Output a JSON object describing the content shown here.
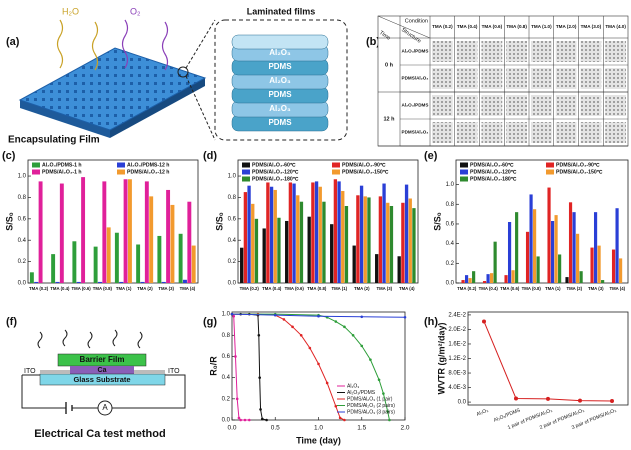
{
  "panel_labels": [
    "(a)",
    "(b)",
    "(c)",
    "(d)",
    "(e)",
    "(f)",
    "(g)",
    "(h)"
  ],
  "diagram_a": {
    "h2o": "H₂O",
    "o2": "O₂",
    "film": "Encapsulating Film",
    "inset_title": "Laminated films",
    "layers": [
      "Al₂O₃",
      "PDMS",
      "Al₂O₃",
      "PDMS",
      "Al₂O₃",
      "PDMS"
    ]
  },
  "table_b": {
    "corner": {
      "condition": "Condition",
      "structure": "Structure",
      "time": "Time"
    },
    "columns": [
      "TMA (0.2)",
      "TMA (0.4)",
      "TMA (0.6)",
      "TMA (0.8)",
      "TMA (1.0)",
      "TMA (2.0)",
      "TMA (3.0)",
      "TMA (4.0)"
    ],
    "groups": [
      {
        "time": "0 h",
        "rows": [
          "Al₂O₃/PDMS",
          "PDMS/Al₂O₃"
        ]
      },
      {
        "time": "12 h",
        "rows": [
          "Al₂O₃/PDMS",
          "PDMS/Al₂O₃"
        ]
      }
    ]
  },
  "diagram_f": {
    "barrier": "Barrier Film",
    "ca": "Ca",
    "ito_left": "ITO",
    "ito_right": "ITO",
    "substrate": "Glass Substrate",
    "meter": "A",
    "caption": "Electrical Ca test method"
  },
  "chart_data": [
    {
      "type": "bar",
      "y_label": "S/S₀",
      "categories": [
        "TMA (0.2)",
        "TMA (0.4)",
        "TMA (0.6)",
        "TMA (0.8)",
        "TMA (1)",
        "TMA (2)",
        "TMA (3)",
        "TMA (4)"
      ],
      "ylim": [
        0,
        1.15
      ],
      "yticks": [
        {
          "value": 0,
          "label": "0.0"
        },
        0.2,
        0.4,
        0.6,
        0.8,
        {
          "value": 1,
          "label": "1.0"
        }
      ],
      "series": [
        {
          "name": "Al₂O₃/PDMS-1 h",
          "color": "#2e9e3a",
          "values": [
            0.1,
            0.27,
            0.39,
            0.34,
            0.47,
            0.36,
            0.44,
            0.46
          ]
        },
        {
          "name": "Al₂O₃/PDMS-12 h",
          "color": "#2a3fd6",
          "values": [
            0.01,
            0.01,
            0.01,
            0.01,
            0.01,
            0.01,
            0.01,
            0.03
          ]
        },
        {
          "name": "PDMS/Al₂O₃-1 h",
          "color": "#e0209a",
          "values": [
            0.95,
            0.93,
            0.99,
            0.95,
            0.97,
            0.95,
            0.87,
            0.76
          ]
        },
        {
          "name": "PDMS/Al₂O₃-12 h",
          "color": "#f29a2e",
          "values": [
            0,
            0,
            0,
            0.52,
            0.97,
            0.81,
            0.73,
            0.35
          ]
        }
      ]
    },
    {
      "type": "bar",
      "y_label": "S/S₀",
      "categories": [
        "TMA (0.2)",
        "TMA (0.4)",
        "TMA (0.6)",
        "TMA (0.8)",
        "TMA (1)",
        "TMA (2)",
        "TMA (3)",
        "TMA (4)"
      ],
      "ylim": [
        0,
        1.15
      ],
      "yticks": [
        {
          "value": 0,
          "label": "0.0"
        },
        0.2,
        0.4,
        0.6,
        0.8,
        {
          "value": 1,
          "label": "1.0"
        }
      ],
      "series": [
        {
          "name": "PDMS/Al₂O₃-60℃",
          "color": "#111111",
          "values": [
            0.33,
            0.51,
            0.58,
            0.62,
            0.55,
            0.35,
            0.27,
            0.25
          ]
        },
        {
          "name": "PDMS/Al₂O₃-90℃",
          "color": "#e02424",
          "values": [
            0.85,
            0.94,
            0.94,
            0.94,
            0.97,
            0.82,
            0.81,
            0.75
          ]
        },
        {
          "name": "PDMS/Al₂O₃-120℃",
          "color": "#2a3fd6",
          "values": [
            0.91,
            0.9,
            0.93,
            0.95,
            0.95,
            0.91,
            0.93,
            0.92
          ]
        },
        {
          "name": "PDMS/Al₂O₃-150℃",
          "color": "#f29a2e",
          "values": [
            0.74,
            0.87,
            0.82,
            0.9,
            0.86,
            0.81,
            0.75,
            0.79
          ]
        },
        {
          "name": "PDMS/Al₂O₃-180℃",
          "color": "#2e8a2e",
          "values": [
            0.6,
            0.61,
            0.76,
            0.76,
            0.72,
            0.8,
            0.72,
            0.7
          ]
        }
      ]
    },
    {
      "type": "bar",
      "y_label": "S/S₀",
      "categories": [
        "TMA (0.2)",
        "TMA (0.4)",
        "TMA (0.6)",
        "TMA (0.8)",
        "TMA (1)",
        "TMA (2)",
        "TMA (3)",
        "TMA (4)"
      ],
      "ylim": [
        0,
        1.25
      ],
      "yticks": [
        {
          "value": 0,
          "label": "0.0"
        },
        0.2,
        0.4,
        0.6,
        0.8,
        {
          "value": 1,
          "label": "1.0"
        }
      ],
      "series": [
        {
          "name": "PDMS/Al₂O₃-60℃",
          "color": "#111111",
          "values": [
            0,
            0,
            0,
            0,
            0,
            0.06,
            0,
            0
          ]
        },
        {
          "name": "PDMS/Al₂O₃-90℃",
          "color": "#e02424",
          "values": [
            0.03,
            0.02,
            0.08,
            0.52,
            0.97,
            0.82,
            0.36,
            0.34
          ]
        },
        {
          "name": "PDMS/Al₂O₃-120℃",
          "color": "#2a3fd6",
          "values": [
            0.08,
            0.09,
            0.62,
            0.9,
            0.63,
            0.72,
            0.72,
            0.76
          ]
        },
        {
          "name": "PDMS/Al₂O₃-150℃",
          "color": "#f29a2e",
          "values": [
            0.05,
            0.1,
            0.13,
            0.75,
            0.69,
            0.5,
            0.38,
            0.25
          ]
        },
        {
          "name": "PDMS/Al₂O₃-180℃",
          "color": "#2e8a2e",
          "values": [
            0.12,
            0.42,
            0.72,
            0.27,
            0.29,
            0.12,
            0.03,
            0
          ]
        }
      ]
    },
    {
      "type": "line",
      "x_label": "Time (day)",
      "y_label": "R₀/R",
      "xlim": [
        0,
        2.0
      ],
      "ylim": [
        0,
        1.02
      ],
      "xticks": [
        {
          "value": 0,
          "label": "0.0"
        },
        0.5,
        {
          "value": 1,
          "label": "1.0"
        },
        1.5,
        {
          "value": 2,
          "label": "2.0"
        }
      ],
      "yticks": [
        {
          "value": 0,
          "label": "0.0"
        },
        0.2,
        0.4,
        0.6,
        0.8,
        {
          "value": 1,
          "label": "1.0"
        }
      ],
      "series": [
        {
          "name": "Al₂O₃",
          "color": "#e0209a",
          "x": [
            0,
            0.02,
            0.04,
            0.06,
            0.08,
            0.1,
            0.15,
            0.2
          ],
          "values": [
            1,
            0.98,
            0.6,
            0.2,
            0.02,
            0,
            0,
            0
          ]
        },
        {
          "name": "Al₂O₃/PDMS",
          "color": "#111111",
          "x": [
            0,
            0.1,
            0.2,
            0.3,
            0.31,
            0.32,
            0.33,
            0.35,
            0.4
          ],
          "values": [
            1,
            1,
            1,
            0.99,
            0.8,
            0.4,
            0.1,
            0.01,
            0
          ]
        },
        {
          "name": "PDMS/Al₂O₃ (1 pair)",
          "color": "#e02424",
          "x": [
            0,
            0.3,
            0.5,
            0.6,
            0.7,
            0.8,
            0.9,
            1.0,
            1.1,
            1.2,
            1.25,
            1.3
          ],
          "values": [
            1,
            1,
            0.99,
            0.95,
            0.88,
            0.8,
            0.68,
            0.53,
            0.35,
            0.13,
            0.02,
            0
          ]
        },
        {
          "name": "PDMS/Al₂O₃ (2 pairs)",
          "color": "#2e9e3a",
          "x": [
            0,
            0.5,
            1.0,
            1.1,
            1.2,
            1.3,
            1.4,
            1.5,
            1.6,
            1.7,
            1.75,
            1.8,
            1.82
          ],
          "values": [
            1,
            1,
            0.99,
            0.97,
            0.93,
            0.88,
            0.8,
            0.7,
            0.57,
            0.38,
            0.25,
            0.08,
            0
          ]
        },
        {
          "name": "PDMS/Al₂O₃ (3 pairs)",
          "color": "#2a3fd6",
          "x": [
            0,
            0.5,
            1.0,
            1.5,
            2.0
          ],
          "values": [
            1,
            0.99,
            0.98,
            0.975,
            0.97
          ]
        }
      ]
    },
    {
      "type": "line",
      "y_label": "WVTR (g/m²/day)",
      "color": "#d62020",
      "categories": [
        "Al₂O₃",
        "Al₂O₃/PDMS",
        "1 pair of PDMS/Al₂O₃",
        "2 pair of PDMS/Al₂O₃",
        "3 pair of PDMS/Al₂O₃"
      ],
      "values": [
        0.0222,
        0.001,
        0.0009,
        0.0004,
        0.0003
      ],
      "ylim": [
        -0.0008,
        0.0248
      ],
      "yticks": [
        {
          "value": 0,
          "label": "0.0"
        },
        {
          "value": 0.004,
          "label": "4.0E-3"
        },
        {
          "value": 0.008,
          "label": "8.0E-3"
        },
        {
          "value": 0.012,
          "label": "1.2E-2"
        },
        {
          "value": 0.016,
          "label": "1.6E-2"
        },
        {
          "value": 0.02,
          "label": "2.0E-2"
        },
        {
          "value": 0.024,
          "label": "2.4E-2"
        }
      ]
    }
  ]
}
